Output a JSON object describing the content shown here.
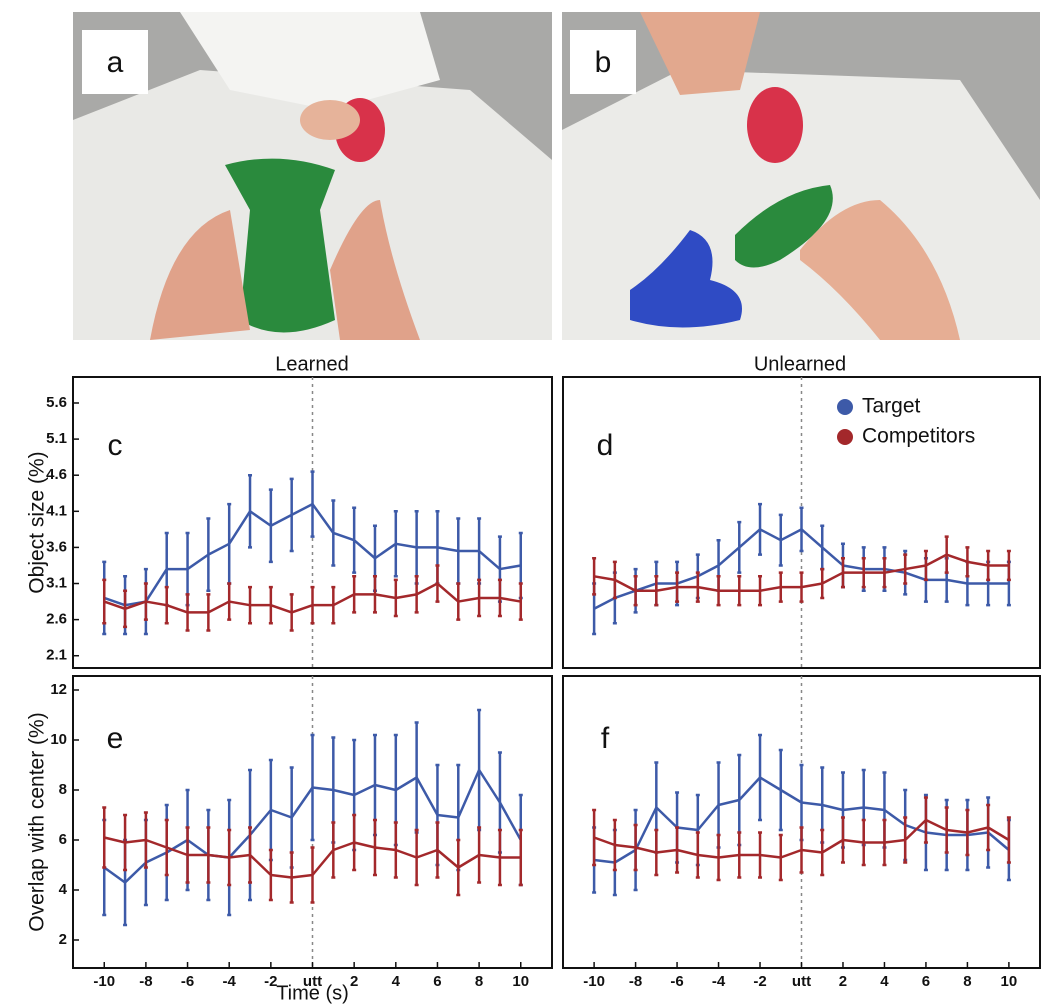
{
  "photos": [
    {
      "label": "a",
      "caption": "Learned"
    },
    {
      "label": "b",
      "caption": "Unlearned"
    }
  ],
  "chart_data": [
    {
      "type": "line",
      "label": "c",
      "ylabel": "Object size (%)",
      "x": [
        -10,
        -9,
        -8,
        -7,
        -6,
        -5,
        -4,
        -3,
        -2,
        -1,
        0,
        1,
        2,
        3,
        4,
        5,
        6,
        7,
        8,
        9,
        10
      ],
      "xlim": [
        -11.5,
        11.5
      ],
      "ylim": [
        1.93,
        5.96
      ],
      "yticks": [
        2.1,
        2.6,
        3.1,
        3.6,
        4.1,
        4.6,
        5.1,
        5.6
      ],
      "series": [
        {
          "color": "#3d5aa8",
          "values": [
            2.9,
            2.8,
            2.85,
            3.3,
            3.3,
            3.5,
            3.65,
            4.1,
            3.9,
            4.05,
            4.2,
            3.8,
            3.7,
            3.45,
            3.65,
            3.6,
            3.6,
            3.55,
            3.55,
            3.3,
            3.35
          ],
          "errors": [
            0.5,
            0.4,
            0.45,
            0.5,
            0.5,
            0.5,
            0.55,
            0.5,
            0.5,
            0.5,
            0.45,
            0.45,
            0.45,
            0.45,
            0.45,
            0.5,
            0.5,
            0.45,
            0.45,
            0.45,
            0.45
          ]
        },
        {
          "color": "#a3282b",
          "values": [
            2.85,
            2.75,
            2.85,
            2.8,
            2.7,
            2.7,
            2.85,
            2.8,
            2.8,
            2.7,
            2.8,
            2.8,
            2.95,
            2.95,
            2.9,
            2.95,
            3.1,
            2.85,
            2.9,
            2.9,
            2.85
          ],
          "errors": [
            0.3,
            0.25,
            0.25,
            0.25,
            0.25,
            0.25,
            0.25,
            0.25,
            0.25,
            0.25,
            0.25,
            0.25,
            0.25,
            0.25,
            0.25,
            0.25,
            0.25,
            0.25,
            0.25,
            0.25,
            0.25
          ]
        }
      ]
    },
    {
      "type": "line",
      "label": "d",
      "x": [
        -10,
        -9,
        -8,
        -7,
        -6,
        -5,
        -4,
        -3,
        -2,
        -1,
        0,
        1,
        2,
        3,
        4,
        5,
        6,
        7,
        8,
        9,
        10
      ],
      "xlim": [
        -11.5,
        11.5
      ],
      "ylim": [
        1.93,
        5.96
      ],
      "series": [
        {
          "name": "Target",
          "color": "#3d5aa8",
          "values": [
            2.75,
            2.9,
            3.0,
            3.1,
            3.1,
            3.2,
            3.35,
            3.6,
            3.85,
            3.7,
            3.85,
            3.6,
            3.35,
            3.3,
            3.3,
            3.25,
            3.15,
            3.15,
            3.1,
            3.1,
            3.1
          ],
          "errors": [
            0.35,
            0.35,
            0.3,
            0.3,
            0.3,
            0.3,
            0.35,
            0.35,
            0.35,
            0.35,
            0.3,
            0.3,
            0.3,
            0.3,
            0.3,
            0.3,
            0.3,
            0.3,
            0.3,
            0.3,
            0.3
          ]
        },
        {
          "name": "Competitors",
          "color": "#a3282b",
          "values": [
            3.2,
            3.15,
            3.0,
            3.0,
            3.05,
            3.05,
            3.0,
            3.0,
            3.0,
            3.05,
            3.05,
            3.1,
            3.25,
            3.25,
            3.25,
            3.3,
            3.35,
            3.5,
            3.4,
            3.35,
            3.35
          ],
          "errors": [
            0.25,
            0.25,
            0.2,
            0.2,
            0.2,
            0.2,
            0.2,
            0.2,
            0.2,
            0.2,
            0.2,
            0.2,
            0.2,
            0.2,
            0.2,
            0.2,
            0.2,
            0.25,
            0.2,
            0.2,
            0.2
          ]
        }
      ]
    },
    {
      "type": "line",
      "label": "e",
      "ylabel": "Overlap with center (%)",
      "xlabel": "Time (s)",
      "x": [
        -10,
        -9,
        -8,
        -7,
        -6,
        -5,
        -4,
        -3,
        -2,
        -1,
        0,
        1,
        2,
        3,
        4,
        5,
        6,
        7,
        8,
        9,
        10
      ],
      "xlim": [
        -11.5,
        11.5
      ],
      "ylim": [
        0.88,
        12.56
      ],
      "yticks": [
        2,
        4,
        6,
        8,
        10,
        12
      ],
      "xticks": [
        -10,
        -8,
        -6,
        -4,
        -2,
        {
          "value": 0,
          "label": "utt"
        },
        2,
        4,
        6,
        8,
        10
      ],
      "series": [
        {
          "color": "#3d5aa8",
          "values": [
            4.9,
            4.3,
            5.1,
            5.5,
            6.0,
            5.4,
            5.3,
            6.2,
            7.2,
            6.9,
            8.1,
            8.0,
            7.8,
            8.2,
            8.0,
            8.5,
            7.0,
            6.9,
            8.8,
            7.5,
            6.0
          ],
          "errors": [
            1.9,
            1.7,
            1.7,
            1.9,
            2.0,
            1.8,
            2.3,
            2.6,
            2.0,
            2.0,
            2.1,
            2.1,
            2.2,
            2.0,
            2.2,
            2.2,
            2.0,
            2.1,
            2.4,
            2.0,
            1.8
          ]
        },
        {
          "color": "#a3282b",
          "values": [
            6.1,
            5.9,
            6.0,
            5.7,
            5.4,
            5.4,
            5.3,
            5.4,
            4.6,
            4.5,
            4.6,
            5.6,
            5.9,
            5.7,
            5.6,
            5.3,
            5.6,
            4.9,
            5.4,
            5.3,
            5.3
          ],
          "errors": [
            1.2,
            1.1,
            1.1,
            1.1,
            1.1,
            1.1,
            1.1,
            1.1,
            1.0,
            1.0,
            1.1,
            1.1,
            1.1,
            1.1,
            1.1,
            1.1,
            1.1,
            1.1,
            1.1,
            1.1,
            1.1
          ]
        }
      ]
    },
    {
      "type": "line",
      "label": "f",
      "x": [
        -10,
        -9,
        -8,
        -7,
        -6,
        -5,
        -4,
        -3,
        -2,
        -1,
        0,
        1,
        2,
        3,
        4,
        5,
        6,
        7,
        8,
        9,
        10
      ],
      "xlim": [
        -11.5,
        11.5
      ],
      "ylim": [
        0.88,
        12.56
      ],
      "xticks": [
        -10,
        -8,
        -6,
        -4,
        -2,
        {
          "value": 0,
          "label": "utt"
        },
        2,
        4,
        6,
        8,
        10
      ],
      "series": [
        {
          "color": "#3d5aa8",
          "values": [
            5.2,
            5.1,
            5.6,
            7.3,
            6.5,
            6.4,
            7.4,
            7.6,
            8.5,
            8.0,
            7.5,
            7.4,
            7.2,
            7.3,
            7.2,
            6.6,
            6.3,
            6.2,
            6.2,
            6.3,
            5.6
          ],
          "errors": [
            1.3,
            1.3,
            1.6,
            1.8,
            1.4,
            1.4,
            1.7,
            1.8,
            1.7,
            1.6,
            1.5,
            1.5,
            1.5,
            1.5,
            1.5,
            1.4,
            1.5,
            1.4,
            1.4,
            1.4,
            1.2
          ]
        },
        {
          "color": "#a3282b",
          "values": [
            6.1,
            5.8,
            5.7,
            5.5,
            5.6,
            5.4,
            5.3,
            5.4,
            5.4,
            5.3,
            5.6,
            5.5,
            6.0,
            5.9,
            5.9,
            6.0,
            6.8,
            6.4,
            6.3,
            6.5,
            6.0
          ],
          "errors": [
            1.1,
            1.0,
            0.9,
            0.9,
            0.9,
            0.9,
            0.9,
            0.9,
            0.9,
            0.9,
            0.9,
            0.9,
            0.9,
            0.9,
            0.9,
            0.9,
            0.9,
            0.9,
            0.9,
            0.9,
            0.9
          ]
        }
      ]
    }
  ]
}
